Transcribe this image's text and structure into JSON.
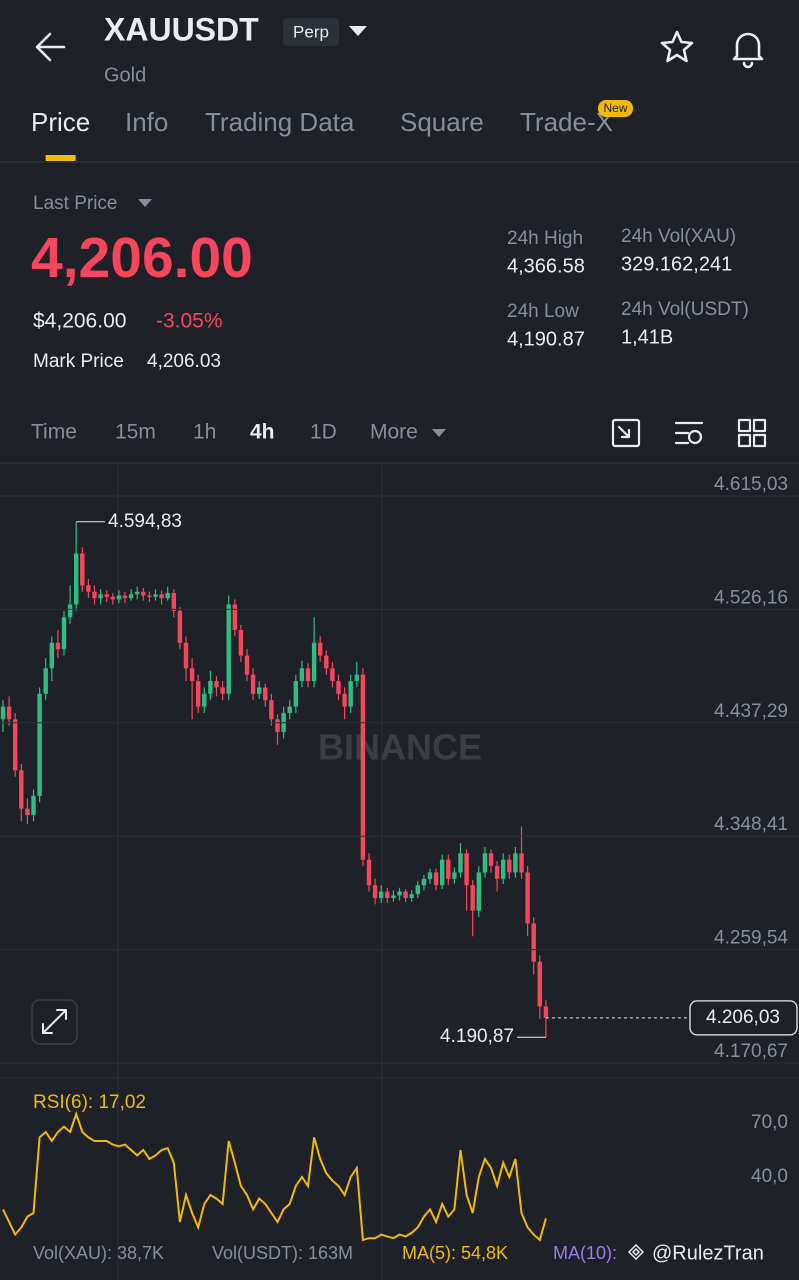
{
  "header": {
    "symbol": "XAUUSDT",
    "badge": "Perp",
    "name": "Gold"
  },
  "tabs": {
    "items": [
      "Price",
      "Info",
      "Trading Data",
      "Square",
      "Trade-X"
    ],
    "active": 0,
    "new_badge": "New"
  },
  "price": {
    "label": "Last Price",
    "last": "4,206.00",
    "usd": "$4,206.00",
    "change": "-3.05%",
    "mark_label": "Mark Price",
    "mark": "4,206.03"
  },
  "stats": [
    {
      "label": "24h High",
      "value": "4,366.58"
    },
    {
      "label": "24h Vol(XAU)",
      "value": "329.162,241"
    },
    {
      "label": "24h Low",
      "value": "4,190.87"
    },
    {
      "label": "24h Vol(USDT)",
      "value": "1,41B"
    }
  ],
  "intervals": {
    "items": [
      "Time",
      "15m",
      "1h",
      "4h",
      "1D",
      "More"
    ],
    "active": 3
  },
  "chart_data": [
    {
      "type": "candlestick",
      "watermark": "BINANCE",
      "up_color": "#2ebd85",
      "down_color": "#f6465d",
      "ylim": [
        4158.9,
        4639.33
      ],
      "yticks": [
        {
          "value": 4615.03,
          "label": "4.615,03"
        },
        {
          "value": 4526.16,
          "label": "4.526,16"
        },
        {
          "value": 4437.29,
          "label": "4.437,29"
        },
        {
          "value": 4348.41,
          "label": "4.348,41"
        },
        {
          "value": 4259.54,
          "label": "4.259,54"
        },
        {
          "value": 4170.67,
          "label": "4.170,67"
        }
      ],
      "high_label": {
        "value": 4594.83,
        "label": "4.594,83"
      },
      "low_label": {
        "value": 4190.87,
        "label": "4.190,87"
      },
      "last_price": {
        "value": 4206.03,
        "label": "4.206,03"
      },
      "ohlc": [
        [
          4440,
          4455,
          4430,
          4450
        ],
        [
          4450,
          4458,
          4435,
          4440
        ],
        [
          4440,
          4445,
          4395,
          4400
        ],
        [
          4400,
          4405,
          4360,
          4370
        ],
        [
          4370,
          4378,
          4358,
          4365
        ],
        [
          4365,
          4385,
          4360,
          4380
        ],
        [
          4380,
          4465,
          4375,
          4460
        ],
        [
          4460,
          4488,
          4455,
          4480
        ],
        [
          4480,
          4505,
          4470,
          4500
        ],
        [
          4500,
          4510,
          4488,
          4495
        ],
        [
          4495,
          4525,
          4490,
          4520
        ],
        [
          4520,
          4545,
          4515,
          4530
        ],
        [
          4530,
          4594.83,
          4525,
          4570
        ],
        [
          4570,
          4575,
          4540,
          4545
        ],
        [
          4545,
          4550,
          4535,
          4540
        ],
        [
          4540,
          4545,
          4530,
          4535
        ],
        [
          4535,
          4542,
          4530,
          4538
        ],
        [
          4538,
          4541,
          4532,
          4536
        ],
        [
          4536,
          4539,
          4530,
          4534
        ],
        [
          4534,
          4541,
          4531,
          4537
        ],
        [
          4537,
          4540,
          4531,
          4535
        ],
        [
          4535,
          4542,
          4533,
          4538
        ],
        [
          4538,
          4544,
          4534,
          4540
        ],
        [
          4540,
          4543,
          4533,
          4537
        ],
        [
          4537,
          4540,
          4532,
          4536
        ],
        [
          4536,
          4542,
          4533,
          4538
        ],
        [
          4538,
          4541,
          4530,
          4535
        ],
        [
          4535,
          4544,
          4533,
          4539
        ],
        [
          4539,
          4542,
          4520,
          4525
        ],
        [
          4525,
          4528,
          4495,
          4500
        ],
        [
          4500,
          4505,
          4470,
          4480
        ],
        [
          4480,
          4488,
          4440,
          4470
        ],
        [
          4470,
          4475,
          4445,
          4450
        ],
        [
          4450,
          4465,
          4445,
          4460
        ],
        [
          4460,
          4478,
          4455,
          4470
        ],
        [
          4470,
          4474,
          4458,
          4465
        ],
        [
          4465,
          4470,
          4455,
          4460
        ],
        [
          4460,
          4537,
          4455,
          4530
        ],
        [
          4530,
          4534,
          4505,
          4510
        ],
        [
          4510,
          4514,
          4485,
          4490
        ],
        [
          4490,
          4495,
          4470,
          4475
        ],
        [
          4475,
          4480,
          4455,
          4460
        ],
        [
          4460,
          4470,
          4456,
          4465
        ],
        [
          4465,
          4468,
          4450,
          4455
        ],
        [
          4455,
          4460,
          4435,
          4440
        ],
        [
          4440,
          4444,
          4420,
          4430
        ],
        [
          4430,
          4450,
          4425,
          4445
        ],
        [
          4445,
          4455,
          4440,
          4450
        ],
        [
          4450,
          4475,
          4445,
          4470
        ],
        [
          4470,
          4486,
          4465,
          4480
        ],
        [
          4480,
          4484,
          4465,
          4470
        ],
        [
          4470,
          4520,
          4465,
          4500
        ],
        [
          4500,
          4505,
          4485,
          4490
        ],
        [
          4490,
          4494,
          4475,
          4480
        ],
        [
          4480,
          4485,
          4465,
          4470
        ],
        [
          4470,
          4475,
          4455,
          4460
        ],
        [
          4460,
          4465,
          4440,
          4450
        ],
        [
          4450,
          4475,
          4445,
          4470
        ],
        [
          4470,
          4485,
          4465,
          4475
        ],
        [
          4475,
          4480,
          4325,
          4330
        ],
        [
          4330,
          4335,
          4305,
          4310
        ],
        [
          4310,
          4315,
          4295,
          4300
        ],
        [
          4300,
          4310,
          4296,
          4305
        ],
        [
          4305,
          4308,
          4296,
          4300
        ],
        [
          4300,
          4306,
          4297,
          4302
        ],
        [
          4302,
          4308,
          4298,
          4305
        ],
        [
          4305,
          4307,
          4297,
          4300
        ],
        [
          4300,
          4306,
          4297,
          4303
        ],
        [
          4303,
          4313,
          4300,
          4310
        ],
        [
          4310,
          4318,
          4306,
          4315
        ],
        [
          4315,
          4323,
          4311,
          4320
        ],
        [
          4320,
          4323,
          4306,
          4310
        ],
        [
          4310,
          4334,
          4307,
          4330
        ],
        [
          4330,
          4334,
          4310,
          4315
        ],
        [
          4315,
          4324,
          4311,
          4320
        ],
        [
          4320,
          4343,
          4316,
          4335
        ],
        [
          4335,
          4338,
          4290,
          4310
        ],
        [
          4310,
          4314,
          4270,
          4290
        ],
        [
          4290,
          4325,
          4285,
          4320
        ],
        [
          4320,
          4340,
          4316,
          4335
        ],
        [
          4335,
          4338,
          4320,
          4325
        ],
        [
          4325,
          4329,
          4305,
          4315
        ],
        [
          4315,
          4335,
          4311,
          4330
        ],
        [
          4330,
          4334,
          4315,
          4320
        ],
        [
          4320,
          4340,
          4316,
          4335
        ],
        [
          4335,
          4356,
          4315,
          4320
        ],
        [
          4320,
          4325,
          4270,
          4280
        ],
        [
          4280,
          4285,
          4240,
          4250
        ],
        [
          4250,
          4255,
          4205,
          4215
        ],
        [
          4215,
          4220,
          4190.87,
          4206.03
        ]
      ]
    },
    {
      "type": "line",
      "title": "RSI(6): 17,02",
      "color": "#f0b90b",
      "ylim": [
        0,
        91.1
      ],
      "yticks": [
        {
          "value": 70,
          "label": "70,0"
        },
        {
          "value": 40,
          "label": "40,0"
        }
      ],
      "values": [
        22,
        15,
        8,
        12,
        18,
        20,
        62,
        65,
        60,
        65,
        68,
        65,
        75,
        65,
        62,
        60,
        60,
        60,
        58,
        57,
        58,
        55,
        52,
        55,
        50,
        52,
        55,
        56,
        48,
        15,
        30,
        20,
        12,
        25,
        30,
        28,
        25,
        60,
        48,
        35,
        30,
        22,
        28,
        25,
        20,
        15,
        22,
        25,
        35,
        40,
        35,
        62,
        50,
        42,
        38,
        35,
        30,
        40,
        45,
        5,
        6,
        6,
        8,
        7,
        6,
        8,
        7,
        9,
        12,
        18,
        22,
        15,
        25,
        18,
        22,
        55,
        30,
        20,
        40,
        50,
        45,
        35,
        48,
        40,
        50,
        20,
        12,
        8,
        5,
        17.02
      ]
    }
  ],
  "volume": {
    "vol_xau": "Vol(XAU): 38,7K",
    "vol_usdt": "Vol(USDT): 163M",
    "ma5": "MA(5): 54,8K",
    "ma10": "MA(10):",
    "watermark": "@RulezTran"
  }
}
